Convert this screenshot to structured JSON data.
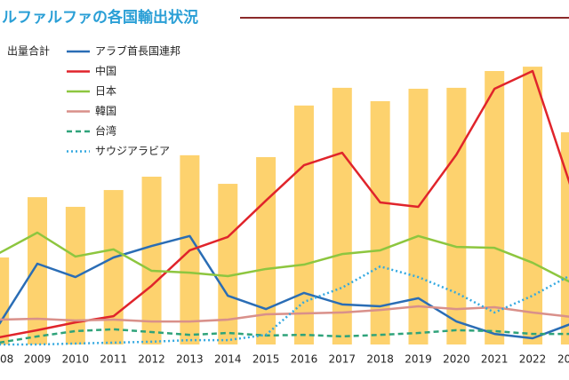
{
  "chart_data": {
    "type": "combo",
    "title": "ルファルファの各国輸出状況",
    "categories": [
      "08",
      "2009",
      "2010",
      "2011",
      "2012",
      "2013",
      "2014",
      "2015",
      "2016",
      "2017",
      "2018",
      "2019",
      "2020",
      "2021",
      "2022",
      "20"
    ],
    "ylim": [
      0,
      100
    ],
    "series": [
      {
        "name": "出量合計",
        "type": "bar",
        "color": "#fdd26e",
        "values": [
          28,
          47.4,
          44.3,
          49.7,
          54,
          60.9,
          51.7,
          60.3,
          76.9,
          82.6,
          78.3,
          82.3,
          82.6,
          88,
          89.4,
          68.3
        ]
      },
      {
        "name": "アラブ首長国連邦",
        "type": "line",
        "dash": "solid",
        "color": "#2a6db5",
        "values": [
          6.6,
          26,
          21.7,
          28,
          31.7,
          34.9,
          15.7,
          11.4,
          16.6,
          12.9,
          12.3,
          14.9,
          7.4,
          3.4,
          2,
          6.6
        ]
      },
      {
        "name": "中国",
        "type": "line",
        "dash": "solid",
        "color": "#e0242b",
        "values": [
          2.3,
          4.6,
          7.1,
          9.1,
          18.9,
          30.3,
          34.6,
          46.3,
          57.7,
          61.7,
          45.7,
          44.3,
          61.1,
          82.3,
          88,
          50.9
        ]
      },
      {
        "name": "日本",
        "type": "line",
        "dash": "solid",
        "color": "#8dc63f",
        "values": [
          29.4,
          36,
          28.3,
          30.6,
          23.7,
          23.1,
          22,
          24.3,
          25.7,
          29.1,
          30.3,
          34.9,
          31.4,
          31.1,
          26.3,
          20
        ]
      },
      {
        "name": "韓国",
        "type": "line",
        "dash": "solid",
        "color": "#d9908a",
        "values": [
          8,
          8.3,
          7.7,
          8,
          7.4,
          7.4,
          8,
          9.7,
          10,
          10.3,
          11.1,
          12.3,
          11.4,
          12,
          10.3,
          8.9
        ]
      },
      {
        "name": "台湾",
        "type": "line",
        "dash": "dashed",
        "color": "#2fa37a",
        "values": [
          0.6,
          2.6,
          4.3,
          4.9,
          4,
          3.1,
          3.7,
          2.9,
          3.1,
          2.6,
          3.1,
          3.7,
          4.6,
          4.3,
          3.4,
          3.4
        ]
      },
      {
        "name": "サウジアラビア",
        "type": "line",
        "dash": "dotted",
        "color": "#34a9e0",
        "values": [
          0,
          0,
          0.3,
          0.6,
          0.9,
          1.4,
          1.4,
          3.1,
          13.7,
          18.3,
          25.1,
          21.7,
          16.6,
          10.3,
          15.7,
          22.3
        ]
      }
    ]
  }
}
